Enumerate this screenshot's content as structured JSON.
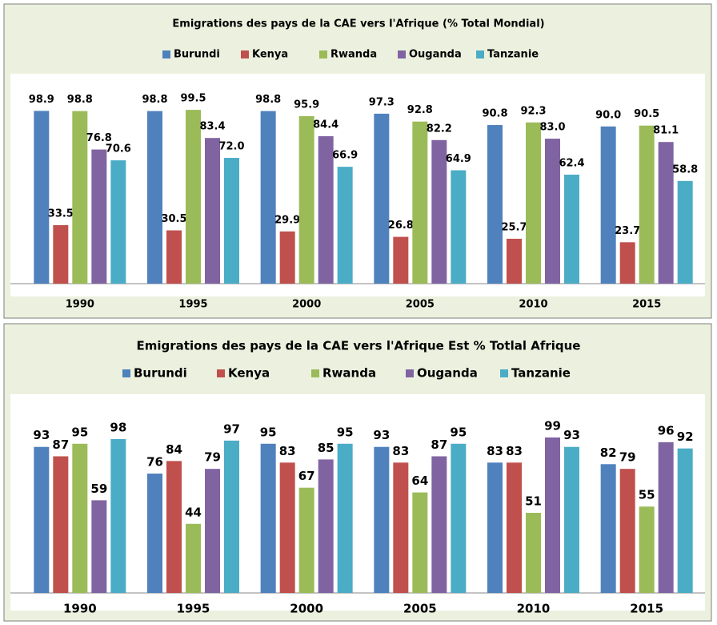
{
  "chart_data": [
    {
      "type": "bar",
      "title": "Emigrations des pays de la CAE  vers  l'Afrique  (% Total Mondial)",
      "categories": [
        "1990",
        "1995",
        "2000",
        "2005",
        "2010",
        "2015"
      ],
      "ylim": [
        0,
        100
      ],
      "legend": "top",
      "series": [
        {
          "name": "Burundi",
          "color": "#4f81bd",
          "values": [
            98.9,
            98.8,
            98.8,
            97.3,
            90.8,
            90.0
          ],
          "value_labels": [
            "98.9",
            "98.8",
            "98.8",
            "97.3",
            "90.8",
            "90.0"
          ]
        },
        {
          "name": "Kenya",
          "color": "#c0504d",
          "values": [
            33.5,
            30.5,
            29.9,
            26.8,
            25.7,
            23.7
          ]
        },
        {
          "name": "Rwanda",
          "color": "#9bbb59",
          "values": [
            98.8,
            99.5,
            95.9,
            92.8,
            92.3,
            90.5
          ]
        },
        {
          "name": "Ouganda",
          "color": "#8064a2",
          "values": [
            76.8,
            83.4,
            84.4,
            82.2,
            83.0,
            81.1
          ],
          "value_labels": [
            "76.8",
            "83.4",
            "84.4",
            "82.2",
            "83.0",
            "81.1"
          ]
        },
        {
          "name": "Tanzanie",
          "color": "#4bacc6",
          "values": [
            70.6,
            72.0,
            66.9,
            64.9,
            62.4,
            58.8
          ],
          "value_labels": [
            "70.6",
            "72.0",
            "66.9",
            "64.9",
            "62.4",
            "58.8"
          ]
        }
      ]
    },
    {
      "type": "bar",
      "title": "Emigrations des pays de la CAE  vers  l'Afrique Est  % Totlal Afrique",
      "categories": [
        "1990",
        "1995",
        "2000",
        "2005",
        "2010",
        "2015"
      ],
      "ylim": [
        0,
        100
      ],
      "legend": "top",
      "series": [
        {
          "name": "Burundi",
          "color": "#4f81bd",
          "values": [
            93,
            76,
            95,
            93,
            83,
            82
          ]
        },
        {
          "name": "Kenya",
          "color": "#c0504d",
          "values": [
            87,
            84,
            83,
            83,
            83,
            79
          ]
        },
        {
          "name": "Rwanda",
          "color": "#9bbb59",
          "values": [
            95,
            44,
            67,
            64,
            51,
            55
          ]
        },
        {
          "name": "Ouganda",
          "color": "#8064a2",
          "values": [
            59,
            79,
            85,
            87,
            99,
            96
          ]
        },
        {
          "name": "Tanzanie",
          "color": "#4bacc6",
          "values": [
            98,
            97,
            95,
            95,
            93,
            92
          ]
        }
      ]
    }
  ]
}
